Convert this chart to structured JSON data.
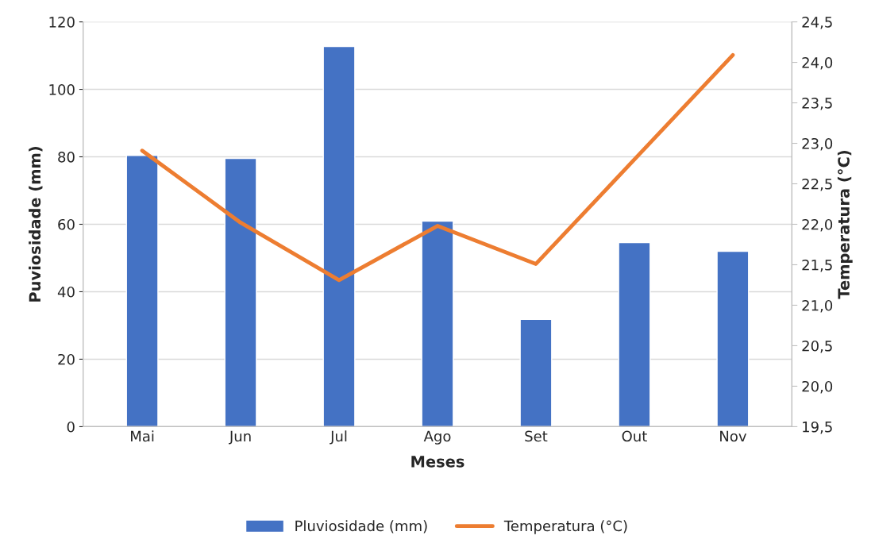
{
  "chart_data": {
    "type": "bar",
    "xlabel": "Meses",
    "ylabel": "Puviosidade (mm)",
    "y2label": "Temperatura (°C)",
    "categories": [
      "Mai",
      "Jun",
      "Jul",
      "Ago",
      "Set",
      "Out",
      "Nov"
    ],
    "series": [
      {
        "name": "Pluviosidade (mm)",
        "color": "#4472c4",
        "values": [
          80.4,
          79.5,
          112.7,
          60.9,
          31.8,
          54.6,
          52.0
        ]
      },
      {
        "name": "Temperatura (°C)",
        "type": "line",
        "axis": "y2",
        "color": "#ed7d31",
        "values": [
          22.91,
          22.02,
          21.31,
          21.98,
          21.51,
          22.8,
          24.09
        ]
      }
    ],
    "ylim": [
      0,
      120
    ],
    "yticks": [
      0,
      20,
      40,
      60,
      80,
      100,
      120
    ],
    "y2lim": [
      19.5,
      24.5
    ],
    "y2ticks": [
      {
        "value": 19.5,
        "label": "19,5"
      },
      {
        "value": 20.0,
        "label": "20,0"
      },
      {
        "value": 20.5,
        "label": "20,5"
      },
      {
        "value": 21.0,
        "label": "21,0"
      },
      {
        "value": 21.5,
        "label": "21,5"
      },
      {
        "value": 22.0,
        "label": "22,0"
      },
      {
        "value": 22.5,
        "label": "22,5"
      },
      {
        "value": 23.0,
        "label": "23,0"
      },
      {
        "value": 23.5,
        "label": "23,5"
      },
      {
        "value": 24.0,
        "label": "24,0"
      },
      {
        "value": 24.5,
        "label": "24,5"
      }
    ],
    "grid": "y",
    "legend": "bottom",
    "marker": "none",
    "line_style": "solid"
  }
}
